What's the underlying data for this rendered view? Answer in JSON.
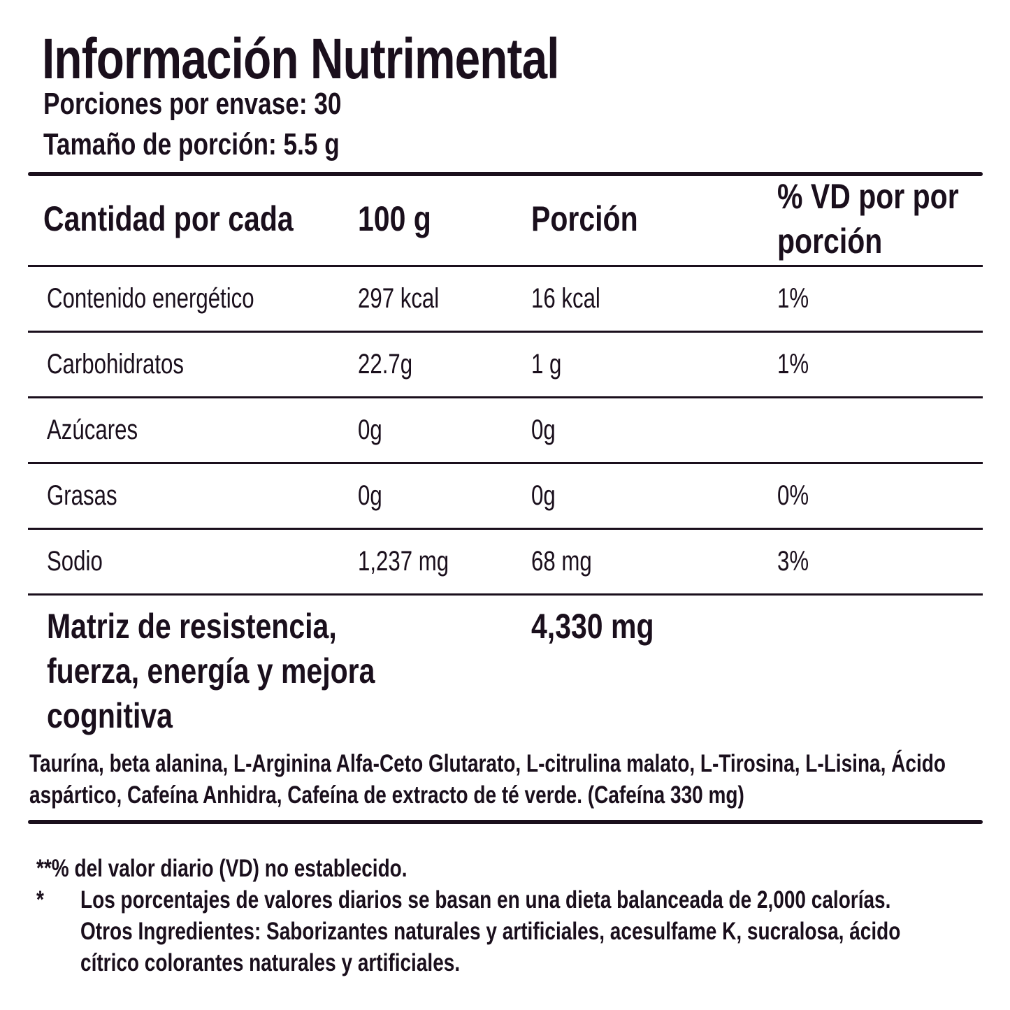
{
  "header": {
    "title": "Información Nutrimental",
    "servings_per_container": "Porciones por envase: 30",
    "serving_size": "Tamaño de porción: 5.5 g"
  },
  "table": {
    "columns": [
      "Cantidad por cada",
      "100 g",
      "Porción",
      "% VD por por",
      "porción"
    ],
    "rows": [
      {
        "name": "Contenido energético",
        "per100": "297 kcal",
        "portion": "16 kcal",
        "vd": "1%"
      },
      {
        "name": "Carbohidratos",
        "per100": "22.7g",
        "portion": "1 g",
        "vd": "1%"
      },
      {
        "name": "Azúcares",
        "per100": "0g",
        "portion": "0g",
        "vd": ""
      },
      {
        "name": "Grasas",
        "per100": "0g",
        "portion": "0g",
        "vd": "0%"
      },
      {
        "name": "Sodio",
        "per100": "1,237 mg",
        "portion": "68 mg",
        "vd": "3%"
      }
    ],
    "matrix": {
      "lines": [
        "Matriz de resistencia,",
        "fuerza, energía y mejora",
        "cognitiva"
      ],
      "amount": "4,330 mg"
    },
    "ingredients": "Taurína, beta alanina, L-Arginina Alfa-Ceto Glutarato, L-citrulina malato, L-Tirosina, L-Lisina, Ácido aspártico, Cafeína Anhidra, Cafeína de extracto de té verde. (Cafeína 330 mg)"
  },
  "footnotes": {
    "vd_note": "**% del valor diario (VD) no establecido.",
    "asterisk": "*",
    "diet_note": "Los porcentajes de valores diarios se basan en una dieta balanceada de 2,000 calorías.",
    "other_line1": "Otros Ingredientes: Saborizantes naturales y artificiales, acesulfame K, sucralosa, ácido",
    "other_line2": "cítrico colorantes naturales y artificiales."
  }
}
